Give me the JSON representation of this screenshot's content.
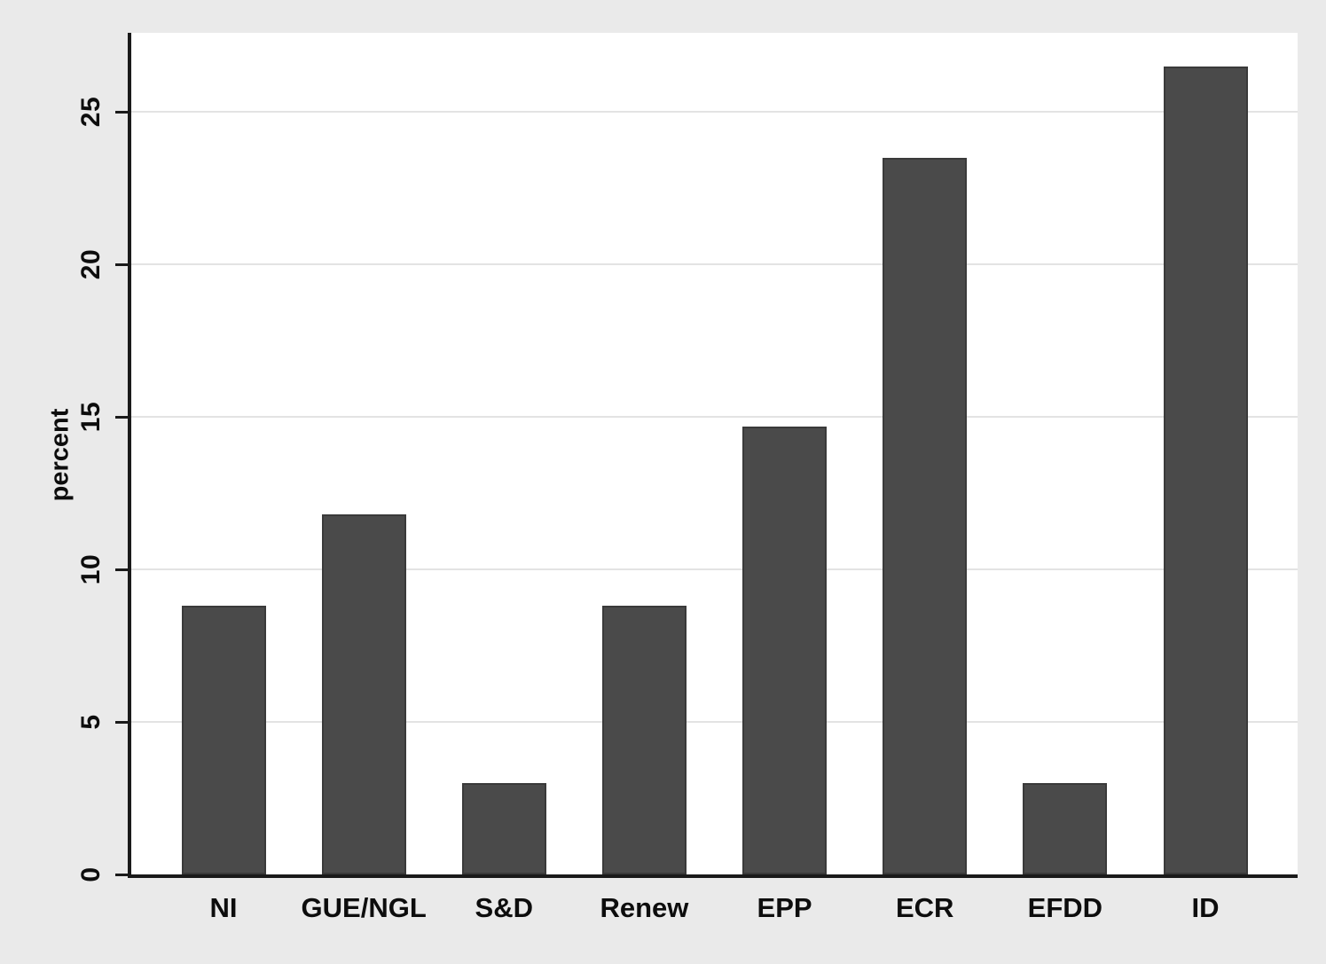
{
  "chart_data": {
    "type": "bar",
    "title": "",
    "ylabel": "percent",
    "xlabel": "",
    "categories": [
      "NI",
      "GUE/NGL",
      "S&D",
      "Renew",
      "EPP",
      "ECR",
      "EFDD",
      "ID"
    ],
    "values": [
      8.8,
      11.8,
      3.0,
      8.8,
      14.7,
      23.5,
      3.0,
      26.5
    ],
    "yticks": [
      0,
      5,
      10,
      15,
      20,
      25
    ],
    "ylim": [
      0,
      27.6
    ],
    "grid": true,
    "legend": "none",
    "colors": {
      "bar_fill": "#4a4a4a",
      "bar_edge": "#3a3a3a",
      "plot_background": "#ffffff",
      "outer_background": "#eaeaea",
      "gridline": "#e3e3e3",
      "axis": "#1a1a1a",
      "text": "#0d0d0d"
    }
  }
}
